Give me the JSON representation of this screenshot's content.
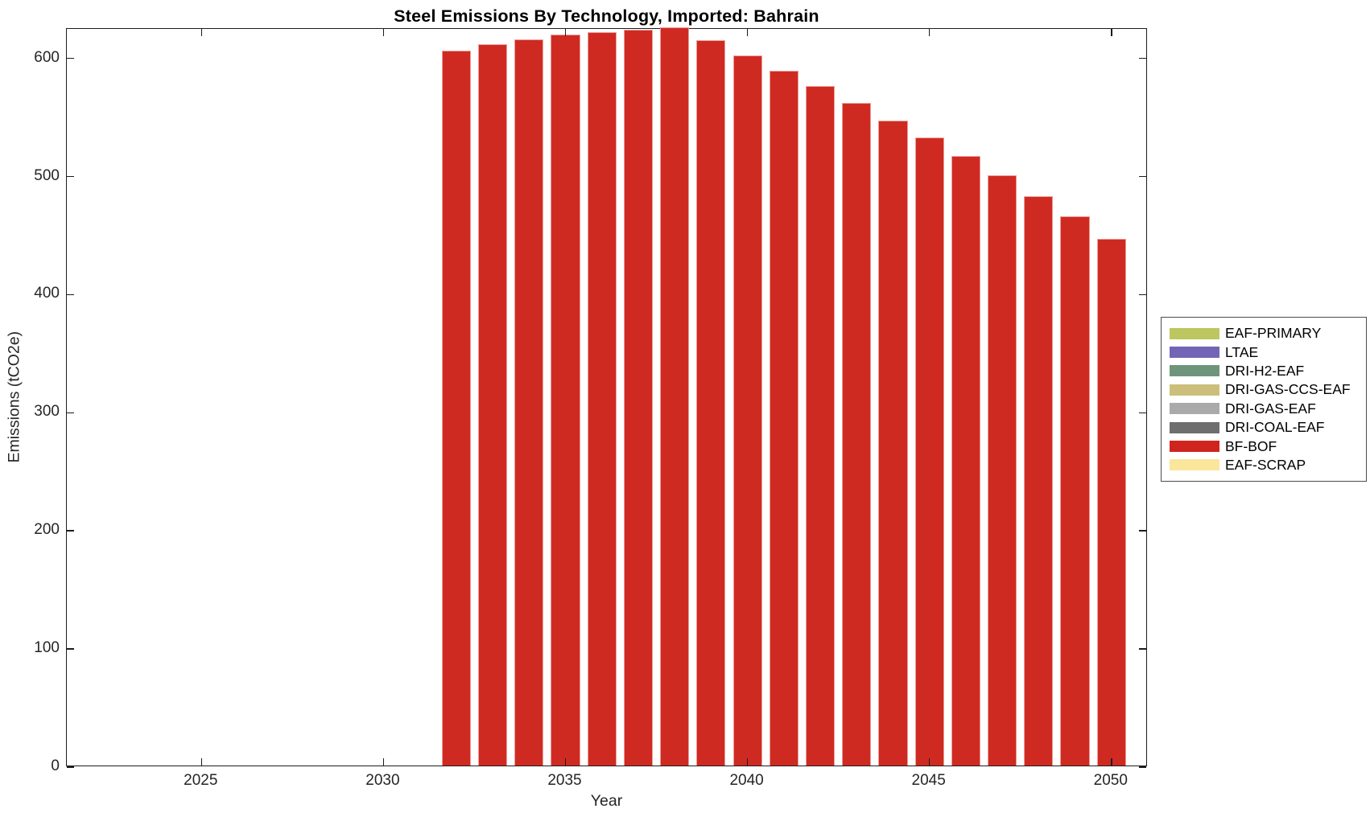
{
  "title": "Steel Emissions By Technology, Imported: Bahrain",
  "chart_data": {
    "type": "bar",
    "title": "Steel Emissions By Technology, Imported: Bahrain",
    "xlabel": "Year",
    "ylabel": "Emissions (tCO2e)",
    "xlim": [
      2021.3,
      2051.0
    ],
    "ylim": [
      0,
      625
    ],
    "x_ticks": [
      2025,
      2030,
      2035,
      2040,
      2045,
      2050
    ],
    "y_ticks": [
      0,
      100,
      200,
      300,
      400,
      500,
      600
    ],
    "grid": false,
    "bar_rel_width": 0.8,
    "categories": [
      2032,
      2033,
      2034,
      2035,
      2036,
      2037,
      2038,
      2039,
      2040,
      2041,
      2042,
      2043,
      2044,
      2045,
      2046,
      2047,
      2048,
      2049,
      2050
    ],
    "series": [
      {
        "name": "BF-BOF",
        "color": "#CF2A22",
        "values": [
          605,
          611,
          615,
          619,
          621,
          623,
          626,
          614,
          601,
          588,
          575,
          561,
          546,
          532,
          516,
          500,
          482,
          465,
          446
        ]
      }
    ],
    "legend": {
      "position": "outside-right",
      "entries": [
        {
          "label": "EAF-PRIMARY",
          "color": "#BDC65F"
        },
        {
          "label": "LTAE",
          "color": "#7265B5"
        },
        {
          "label": "DRI-H2-EAF",
          "color": "#6E957B"
        },
        {
          "label": "DRI-GAS-CCS-EAF",
          "color": "#CCBF7B"
        },
        {
          "label": "DRI-GAS-EAF",
          "color": "#AAAAAA"
        },
        {
          "label": "DRI-COAL-EAF",
          "color": "#6E6E6E"
        },
        {
          "label": "BF-BOF",
          "color": "#D0241F"
        },
        {
          "label": "EAF-SCRAP",
          "color": "#FAE69C"
        }
      ]
    }
  }
}
